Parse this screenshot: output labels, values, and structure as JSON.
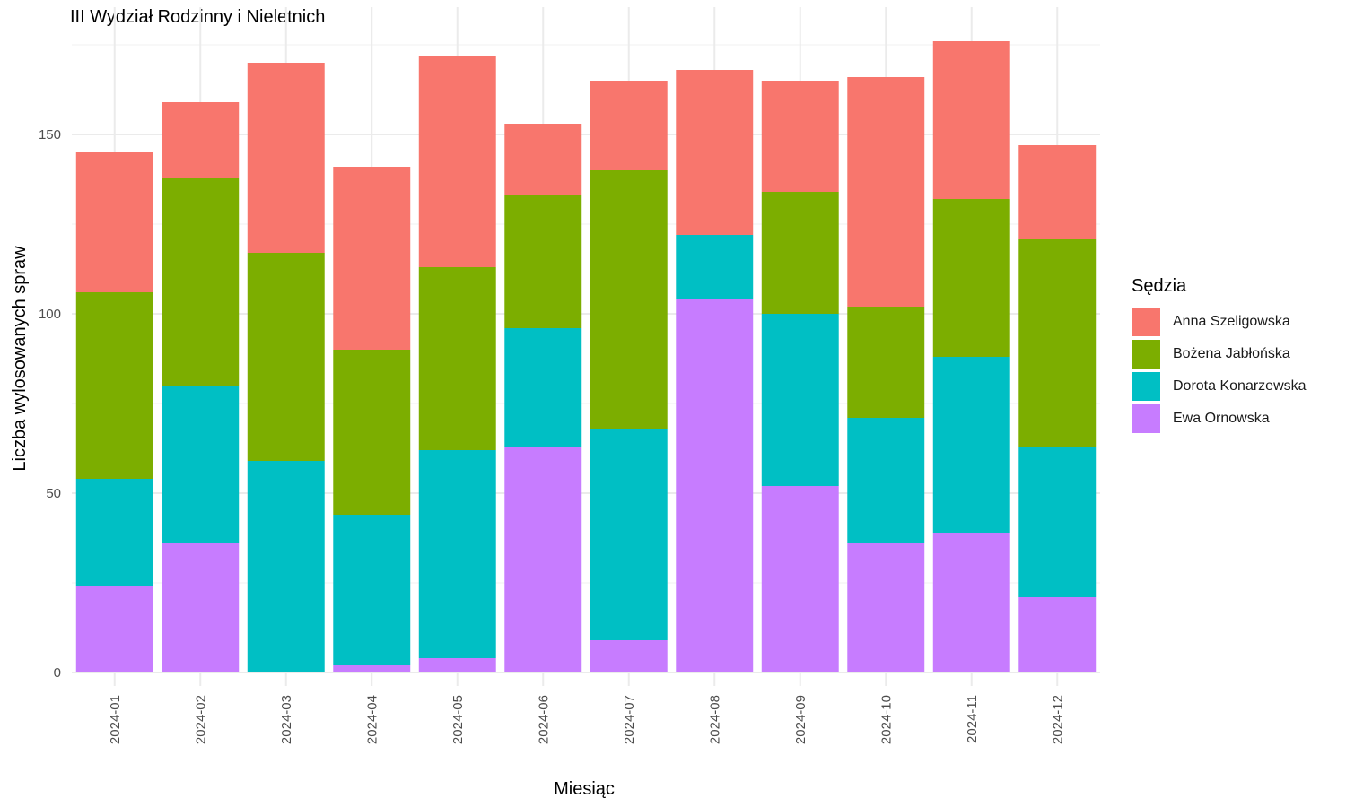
{
  "chart_data": {
    "type": "bar",
    "stacked": true,
    "title": "III Wydział Rodzinny i Nieletnich",
    "xlabel": "Miesiąc",
    "ylabel": "Liczba wylosowanych spraw",
    "ylim": [
      0,
      180
    ],
    "yticks": [
      0,
      50,
      100,
      150
    ],
    "grid": true,
    "legend_title": "Sędzia",
    "legend_position": "right",
    "categories": [
      "2024-01",
      "2024-02",
      "2024-03",
      "2024-04",
      "2024-05",
      "2024-06",
      "2024-07",
      "2024-08",
      "2024-09",
      "2024-10",
      "2024-11",
      "2024-12"
    ],
    "series": [
      {
        "name": "Ewa Ornowska",
        "color": "#C77CFF",
        "values": [
          24,
          36,
          0,
          2,
          4,
          63,
          9,
          104,
          52,
          36,
          39,
          21
        ]
      },
      {
        "name": "Dorota Konarzewska",
        "color": "#00BFC4",
        "values": [
          30,
          44,
          59,
          42,
          58,
          33,
          59,
          18,
          48,
          35,
          49,
          42
        ]
      },
      {
        "name": "Bożena Jabłońska",
        "color": "#7CAE00",
        "values": [
          52,
          58,
          58,
          46,
          51,
          37,
          72,
          0,
          34,
          31,
          44,
          58
        ]
      },
      {
        "name": "Anna Szeligowska",
        "color": "#F8766D",
        "values": [
          39,
          21,
          53,
          51,
          59,
          20,
          25,
          46,
          31,
          64,
          44,
          26
        ]
      }
    ],
    "legend_order": [
      "Anna Szeligowska",
      "Bożena Jabłońska",
      "Dorota Konarzewska",
      "Ewa Ornowska"
    ]
  }
}
